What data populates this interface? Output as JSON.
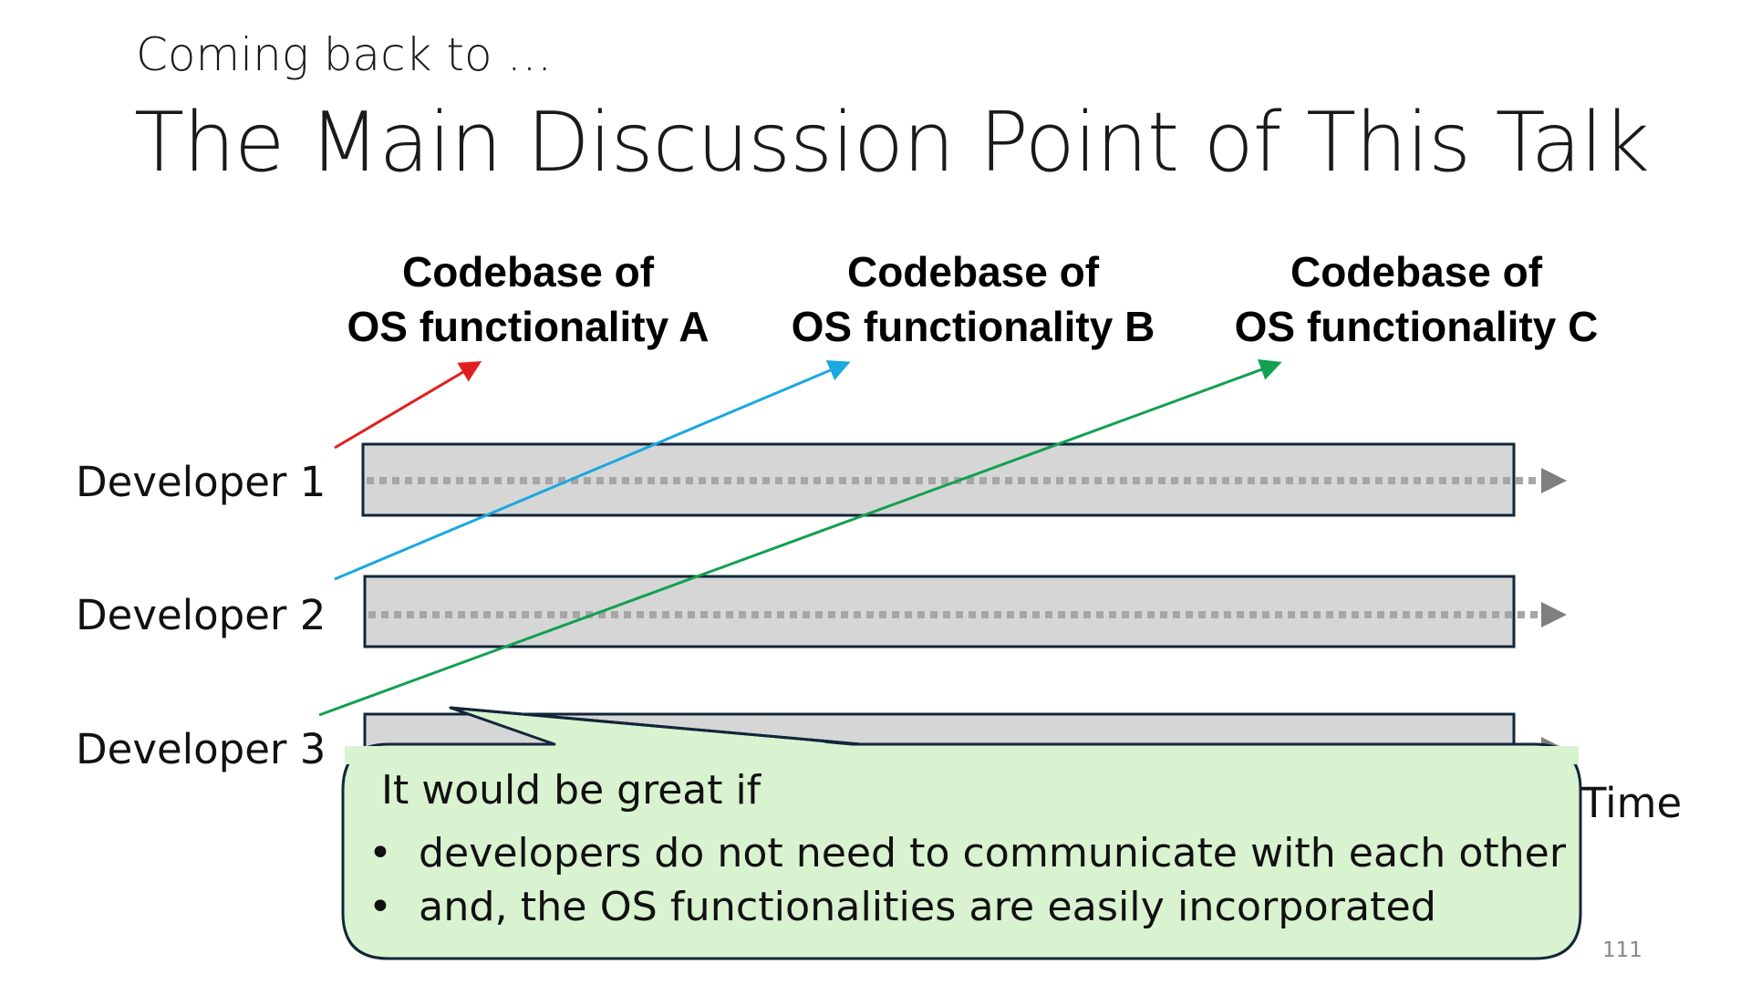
{
  "slide": {
    "subtitle": "Coming back to …",
    "title": "The Main Discussion Point of This Talk",
    "codebases": [
      {
        "line1": "Codebase of",
        "line2": "OS functionality A",
        "color": "#e02020"
      },
      {
        "line1": "Codebase of",
        "line2": "OS functionality B",
        "color": "#1aa8e0"
      },
      {
        "line1": "Codebase of",
        "line2": "OS functionality C",
        "color": "#12a050"
      }
    ],
    "developers": [
      "Developer 1",
      "Developer 2",
      "Developer 3"
    ],
    "time_label": "Time",
    "callout": {
      "intro": "It would be great if",
      "bullets": [
        "developers do not need to communicate with each other",
        "and, the OS functionalities are easily incorporated"
      ],
      "fill": "#d9f2d0"
    },
    "page_number": "111"
  }
}
